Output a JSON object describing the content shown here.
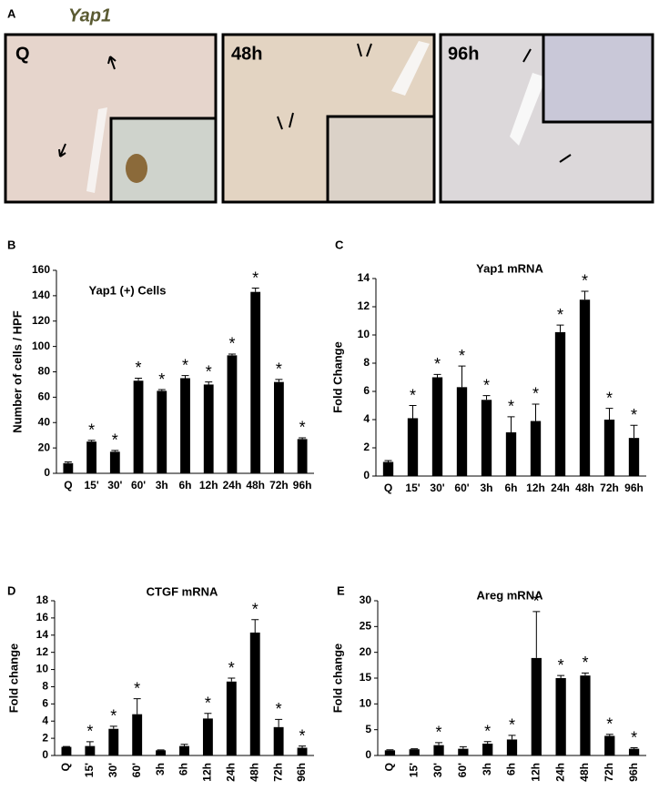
{
  "panel_a": {
    "label": "A",
    "title": "Yap1",
    "images": [
      {
        "label": "Q"
      },
      {
        "label": "48h"
      },
      {
        "label": "96h"
      }
    ]
  },
  "chart_data": [
    {
      "type": "bar",
      "panel": "B",
      "title": "Yap1 (+) Cells",
      "ylabel": "Number of cells / HPF",
      "color": "#000000",
      "categories": [
        "Q",
        "15'",
        "30'",
        "60'",
        "3h",
        "6h",
        "12h",
        "24h",
        "48h",
        "72h",
        "96h"
      ],
      "values": [
        8,
        25,
        17,
        73,
        65,
        75,
        70,
        93,
        143,
        72,
        27
      ],
      "errors": [
        1,
        1,
        1,
        2,
        1,
        2,
        2,
        1,
        3,
        2,
        1
      ],
      "significance": [
        null,
        "*",
        "*",
        "*",
        "*",
        "*",
        "*",
        "*",
        "*",
        "*",
        "*"
      ],
      "ylim": [
        0,
        160
      ],
      "yticks": [
        0,
        20,
        40,
        60,
        80,
        100,
        120,
        140,
        160
      ]
    },
    {
      "type": "bar",
      "panel": "C",
      "title": "Yap1 mRNA",
      "ylabel": "Fold Change",
      "color": "#000000",
      "categories": [
        "Q",
        "15'",
        "30'",
        "60'",
        "3h",
        "6h",
        "12h",
        "24h",
        "48h",
        "72h",
        "96h"
      ],
      "values": [
        1,
        4.1,
        7,
        6.3,
        5.4,
        3.1,
        3.9,
        10.2,
        12.5,
        4,
        2.7
      ],
      "errors": [
        0.1,
        0.9,
        0.2,
        1.5,
        0.3,
        1.1,
        1.2,
        0.5,
        0.6,
        0.8,
        0.9
      ],
      "significance": [
        null,
        "*",
        "*",
        "*",
        "*",
        "*",
        "*",
        "*",
        "*",
        "*",
        "*"
      ],
      "ylim": [
        0,
        14
      ],
      "yticks": [
        0,
        2,
        4,
        6,
        8,
        10,
        12,
        14
      ]
    },
    {
      "type": "bar",
      "panel": "D",
      "title": "CTGF mRNA",
      "ylabel": "Fold change",
      "color": "#000000",
      "categories": [
        "Q",
        "15'",
        "30'",
        "60'",
        "3h",
        "6h",
        "12h",
        "24h",
        "48h",
        "72h",
        "96h"
      ],
      "values": [
        1,
        1.1,
        3.1,
        4.8,
        0.6,
        1.1,
        4.3,
        8.6,
        14.3,
        3.3,
        0.9
      ],
      "errors": [
        0.05,
        0.5,
        0.3,
        1.8,
        0.05,
        0.2,
        0.6,
        0.4,
        1.5,
        0.9,
        0.2
      ],
      "significance": [
        null,
        "*",
        "*",
        "*",
        null,
        null,
        "*",
        "*",
        "*",
        "*",
        "*"
      ],
      "ylim": [
        0,
        18
      ],
      "yticks": [
        0,
        2,
        4,
        6,
        8,
        10,
        12,
        14,
        16,
        18
      ]
    },
    {
      "type": "bar",
      "panel": "E",
      "title": "Areg mRNA",
      "ylabel": "Fold change",
      "color": "#000000",
      "categories": [
        "Q",
        "15'",
        "30'",
        "60'",
        "3h",
        "6h",
        "12h",
        "24h",
        "48h",
        "72h",
        "96h"
      ],
      "values": [
        1,
        1.2,
        2,
        1.3,
        2.3,
        3.1,
        18.9,
        15,
        15.5,
        3.8,
        1.3
      ],
      "errors": [
        0.1,
        0.1,
        0.5,
        0.4,
        0.4,
        0.8,
        9,
        0.5,
        0.5,
        0.3,
        0.2
      ],
      "significance": [
        null,
        null,
        "*",
        null,
        "*",
        "*",
        "*",
        "*",
        "*",
        "*",
        "*"
      ],
      "ylim": [
        0,
        30
      ],
      "yticks": [
        0,
        5,
        10,
        15,
        20,
        25,
        30
      ]
    }
  ]
}
